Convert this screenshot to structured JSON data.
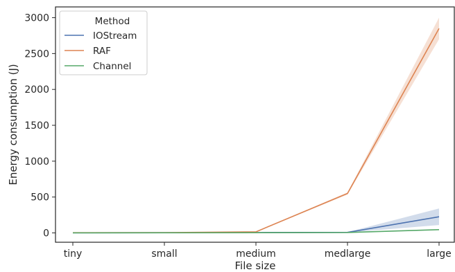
{
  "chart_data": {
    "type": "line",
    "xlabel": "File size",
    "ylabel": "Energy consumption (J)",
    "categories": [
      "tiny",
      "small",
      "medium",
      "medlarge",
      "large"
    ],
    "ylim": [
      -130,
      3150
    ],
    "yticks": [
      0,
      500,
      1000,
      1500,
      2000,
      2500,
      3000
    ],
    "grid": false,
    "legend": {
      "title": "Method",
      "placement": "top-left"
    },
    "series": [
      {
        "name": "IOStream",
        "color": "#4c72b0",
        "values": [
          2,
          3,
          5,
          8,
          225
        ],
        "ci_low": [
          1,
          2,
          4,
          6,
          110
        ],
        "ci_high": [
          3,
          4,
          6,
          10,
          340
        ]
      },
      {
        "name": "RAF",
        "color": "#dd8452",
        "values": [
          3,
          4,
          15,
          550,
          2850
        ],
        "ci_low": [
          2,
          3,
          12,
          535,
          2700
        ],
        "ci_high": [
          4,
          5,
          18,
          565,
          3000
        ]
      },
      {
        "name": "Channel",
        "color": "#55a868",
        "values": [
          1,
          2,
          3,
          6,
          45
        ],
        "ci_low": [
          0,
          1,
          2,
          5,
          40
        ],
        "ci_high": [
          2,
          3,
          4,
          7,
          50
        ]
      }
    ]
  }
}
